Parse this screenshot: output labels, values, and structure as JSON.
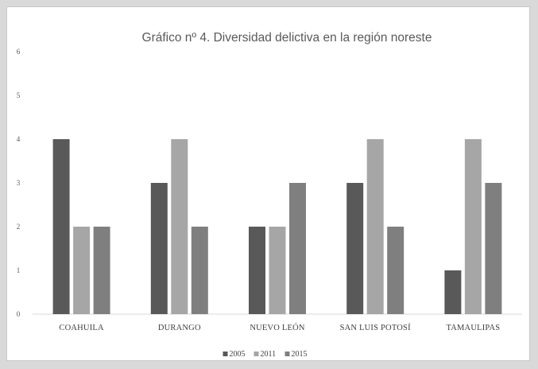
{
  "chart_data": {
    "type": "bar",
    "title": "Gráfico nº 4. Diversidad delictiva en la región noreste",
    "xlabel": "",
    "ylabel": "",
    "ylim": [
      0,
      6
    ],
    "yticks": [
      "0",
      "1",
      "2",
      "3",
      "4",
      "5",
      "6"
    ],
    "grid": false,
    "legend_position": "bottom",
    "categories": [
      "COAHUILA",
      "DURANGO",
      "NUEVO LEÓN",
      "SAN LUIS POTOSÍ",
      "TAMAULIPAS"
    ],
    "series": [
      {
        "name": "2005",
        "color": "#595959",
        "values": [
          4,
          3,
          2,
          3,
          1
        ]
      },
      {
        "name": "2011",
        "color": "#a6a6a6",
        "values": [
          2,
          4,
          2,
          4,
          4
        ]
      },
      {
        "name": "2015",
        "color": "#7f7f7f",
        "values": [
          2,
          2,
          3,
          2,
          3
        ]
      }
    ]
  }
}
